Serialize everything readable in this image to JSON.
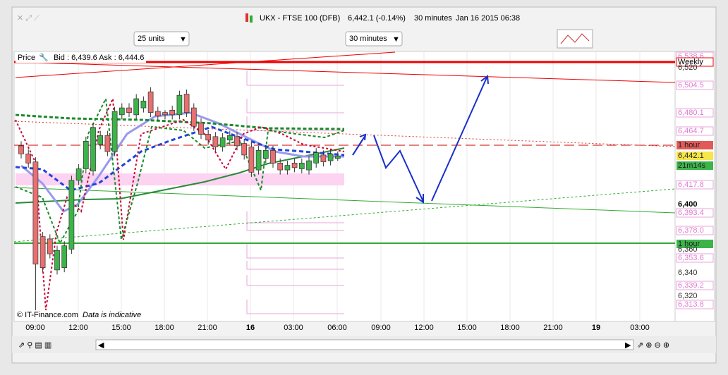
{
  "window": {
    "title": "UKX - FTSE 100 (DFB)",
    "price": "6,442.1 (-0.14%)",
    "interval": "30 minutes",
    "timestamp": "Jan 16 2015 06:38"
  },
  "toolbar": {
    "units": "25 units",
    "timeframe": "30 minutes"
  },
  "chart": {
    "price_label": "Price",
    "quote": "Bid : 6,439.6 Ask : 6,444.6",
    "copyright": "© IT-Finance.com",
    "disclaimer": "Data is indicative",
    "time_labels": [
      "09:00",
      "12:00",
      "15:00",
      "18:00",
      "21:00",
      "16",
      "03:00",
      "06:00",
      "09:00",
      "12:00",
      "15:00",
      "18:00",
      "21:00",
      "19",
      "03:00"
    ],
    "axis_labels": [
      "6,538.6",
      "Weekly",
      "6,520",
      "6,504.5",
      "6,480.1",
      "6,464.7",
      "1 hour",
      "6,442.1",
      "21m14s",
      "6,417.8",
      "6,400",
      "6,393.4",
      "6,378.0",
      "1 hour",
      "6,360",
      "6,353.6",
      "6,340",
      "6,339.2",
      "6,320",
      "6,313.8"
    ],
    "candles": {
      "open": [
        6451,
        6444,
        6437,
        6372,
        6370,
        6343,
        6345,
        6361,
        6421,
        6431,
        6429,
        6452,
        6460,
        6446,
        6478,
        6484,
        6478,
        6484,
        6498,
        6481,
        6480,
        6482,
        6478,
        6496,
        6484,
        6471,
        6461,
        6459,
        6450,
        6456,
        6459,
        6453,
        6450,
        6430,
        6440,
        6447,
        6436,
        6430,
        6436,
        6431,
        6430,
        6436,
        6443,
        6438,
        6440
      ],
      "high": [
        6455,
        6448,
        6441,
        6376,
        6374,
        6364,
        6368,
        6425,
        6435,
        6459,
        6471,
        6464,
        6464,
        6485,
        6488,
        6488,
        6496,
        6494,
        6502,
        6485,
        6482,
        6486,
        6499,
        6500,
        6488,
        6475,
        6465,
        6463,
        6462,
        6464,
        6463,
        6457,
        6454,
        6451,
        6451,
        6451,
        6440,
        6438,
        6440,
        6440,
        6442,
        6449,
        6447,
        6448,
        6446
      ],
      "low": [
        6440,
        6432,
        6308,
        6341,
        6353,
        6339,
        6341,
        6357,
        6417,
        6427,
        6425,
        6448,
        6442,
        6442,
        6474,
        6476,
        6474,
        6480,
        6476,
        6473,
        6474,
        6474,
        6474,
        6476,
        6464,
        6457,
        6452,
        6446,
        6446,
        6452,
        6447,
        6439,
        6424,
        6426,
        6436,
        6432,
        6426,
        6426,
        6428,
        6427,
        6426,
        6432,
        6433,
        6434,
        6438
      ],
      "close": [
        6444,
        6436,
        6348,
        6345,
        6357,
        6360,
        6364,
        6421,
        6431,
        6455,
        6467,
        6460,
        6446,
        6481,
        6484,
        6480,
        6492,
        6490,
        6480,
        6477,
        6478,
        6478,
        6495,
        6480,
        6468,
        6461,
        6456,
        6450,
        6458,
        6460,
        6451,
        6443,
        6428,
        6447,
        6447,
        6436,
        6430,
        6434,
        6432,
        6436,
        6438,
        6445,
        6437,
        6444,
        6442
      ]
    }
  }
}
